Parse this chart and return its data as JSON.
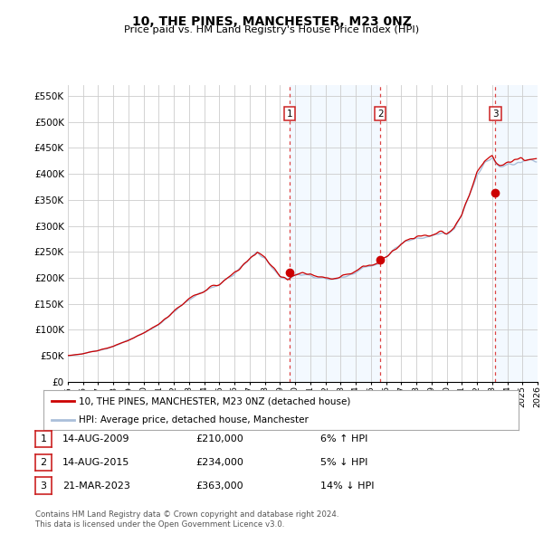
{
  "title": "10, THE PINES, MANCHESTER, M23 0NZ",
  "subtitle": "Price paid vs. HM Land Registry's House Price Index (HPI)",
  "ylabel_ticks": [
    "£0",
    "£50K",
    "£100K",
    "£150K",
    "£200K",
    "£250K",
    "£300K",
    "£350K",
    "£400K",
    "£450K",
    "£500K",
    "£550K"
  ],
  "ytick_values": [
    0,
    50000,
    100000,
    150000,
    200000,
    250000,
    300000,
    350000,
    400000,
    450000,
    500000,
    550000
  ],
  "ylim": [
    0,
    570000
  ],
  "xlim_years": [
    1995,
    2026
  ],
  "xtick_years": [
    1995,
    1996,
    1997,
    1998,
    1999,
    2000,
    2001,
    2002,
    2003,
    2004,
    2005,
    2006,
    2007,
    2008,
    2009,
    2010,
    2011,
    2012,
    2013,
    2014,
    2015,
    2016,
    2017,
    2018,
    2019,
    2020,
    2021,
    2022,
    2023,
    2024,
    2025,
    2026
  ],
  "hpi_color": "#aabfda",
  "price_color": "#cc0000",
  "grid_color": "#cccccc",
  "bg_color": "#ffffff",
  "legend_line1": "10, THE PINES, MANCHESTER, M23 0NZ (detached house)",
  "legend_line2": "HPI: Average price, detached house, Manchester",
  "sales": [
    {
      "label": "1",
      "date": 2009.62,
      "price": 210000
    },
    {
      "label": "2",
      "date": 2015.62,
      "price": 234000
    },
    {
      "label": "3",
      "date": 2023.22,
      "price": 363000
    }
  ],
  "table_rows": [
    {
      "num": "1",
      "date": "14-AUG-2009",
      "price": "£210,000",
      "change": "6% ↑ HPI"
    },
    {
      "num": "2",
      "date": "14-AUG-2015",
      "price": "£234,000",
      "change": "5% ↓ HPI"
    },
    {
      "num": "3",
      "date": "21-MAR-2023",
      "price": "£363,000",
      "change": "14% ↓ HPI"
    }
  ],
  "footer1": "Contains HM Land Registry data © Crown copyright and database right 2024.",
  "footer2": "This data is licensed under the Open Government Licence v3.0.",
  "vline_color": "#dd4444",
  "shade_color": "#ddeeff"
}
